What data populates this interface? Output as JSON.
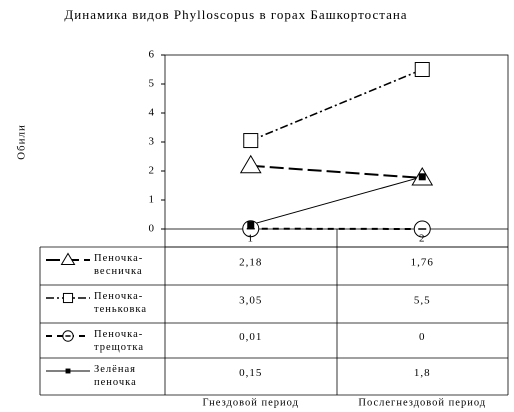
{
  "chart_data": {
    "type": "line",
    "title": "Динамика видов Phylloscopus в горах Башкортостана",
    "y_label": "Обили",
    "categories": [
      "1",
      "2"
    ],
    "period_labels": [
      "Гнездовой период",
      "Послегнездовой период"
    ],
    "ylim": [
      0,
      6
    ],
    "yticks": [
      0,
      1,
      2,
      3,
      4,
      5,
      6
    ],
    "grid": false,
    "series": [
      {
        "name": "Пеночка-весничка",
        "color": "#000000",
        "line_style": "long-dash",
        "marker": "triangle",
        "values": [
          2.18,
          1.76
        ],
        "value_labels": [
          "2,18",
          "1,76"
        ]
      },
      {
        "name": "Пеночка-теньковка",
        "color": "#000000",
        "line_style": "dash-dot",
        "marker": "square",
        "values": [
          3.05,
          5.5
        ],
        "value_labels": [
          "3,05",
          "5,5"
        ]
      },
      {
        "name": "Пеночка-трещотка",
        "color": "#000000",
        "line_style": "dash",
        "marker": "circle",
        "values": [
          0.01,
          0
        ],
        "value_labels": [
          "0,01",
          "0"
        ]
      },
      {
        "name": "Зелёная пеночка",
        "color": "#000000",
        "line_style": "solid",
        "marker": "small-square",
        "values": [
          0.15,
          1.8
        ],
        "value_labels": [
          "0,15",
          "1,8"
        ]
      }
    ]
  }
}
